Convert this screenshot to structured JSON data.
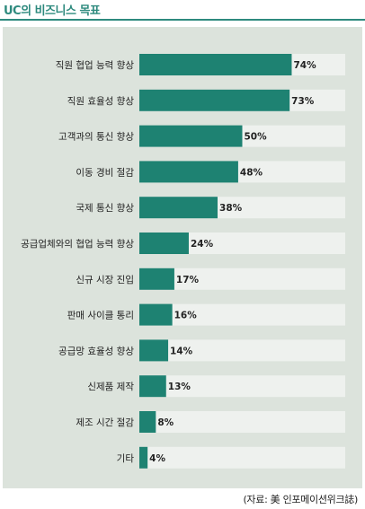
{
  "title": "UC의 비즈니스 목표",
  "source": "(자료: 美 인포메이션위크誌)",
  "colors": {
    "accent": "#2e8a7e",
    "bar": "#1e8272",
    "track": "#eef1ee",
    "panel": "#dce3dc"
  },
  "chart_data": {
    "type": "bar",
    "orientation": "horizontal",
    "title": "UC의 비즈니스 목표",
    "categories": [
      "직원 협업 능력 향상",
      "직원 효율성 향상",
      "고객과의 통신 향상",
      "이동 경비 절감",
      "국제 통신 향상",
      "공급업체와의 협업 능력 향상",
      "신규 시장 진입",
      "판매 사이클 통리",
      "공급망 효율성 향상",
      "신제품 제작",
      "제조 시간 절감",
      "기타"
    ],
    "values": [
      74,
      73,
      50,
      48,
      38,
      24,
      17,
      16,
      14,
      13,
      8,
      4
    ],
    "value_labels": [
      "74%",
      "73%",
      "50%",
      "48%",
      "38%",
      "24%",
      "17%",
      "16%",
      "14%",
      "13%",
      "8%",
      "4%"
    ],
    "xlim": [
      0,
      100
    ],
    "grid": false,
    "legend": "none"
  }
}
